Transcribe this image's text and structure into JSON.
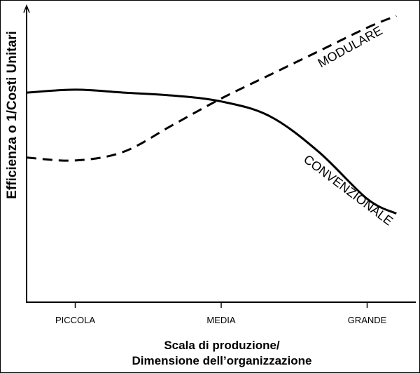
{
  "chart_data": {
    "type": "line",
    "title": "",
    "ylabel": "Efficienza o 1/Costi Unitari",
    "xlabel_lines": [
      "Scala di produzione/",
      "Dimensione dell’organizzazione"
    ],
    "x_categories": [
      "PICCOLA",
      "MEDIA",
      "GRANDE"
    ],
    "x_category_positions": [
      0.5,
      2.0,
      3.5
    ],
    "xlim": [
      0,
      4
    ],
    "ylim": [
      0,
      1
    ],
    "y_ticks_shown": false,
    "grid": false,
    "legend": "none (series labelled directly on lines)",
    "series": [
      {
        "name": "MODULARE",
        "line_style": "dashed",
        "color": "#000000",
        "x": [
          0.0,
          0.5,
          1.0,
          1.5,
          2.0,
          2.5,
          3.0,
          3.5,
          3.8
        ],
        "y": [
          0.49,
          0.48,
          0.51,
          0.6,
          0.69,
          0.77,
          0.85,
          0.93,
          0.97
        ]
      },
      {
        "name": "CONVENZIONALE",
        "line_style": "solid",
        "color": "#000000",
        "x": [
          0.0,
          0.5,
          1.0,
          1.5,
          2.0,
          2.5,
          3.0,
          3.5,
          3.8
        ],
        "y": [
          0.71,
          0.72,
          0.71,
          0.7,
          0.68,
          0.63,
          0.51,
          0.35,
          0.3
        ]
      }
    ]
  }
}
